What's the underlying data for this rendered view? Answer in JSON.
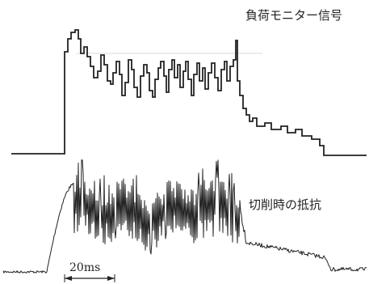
{
  "labels": {
    "top_signal": "負荷モニター信号",
    "bottom_signal": "切削時の抵抗",
    "time_scale": "20ms"
  },
  "colors": {
    "ink": "#222222",
    "background": "#ffffff"
  }
}
